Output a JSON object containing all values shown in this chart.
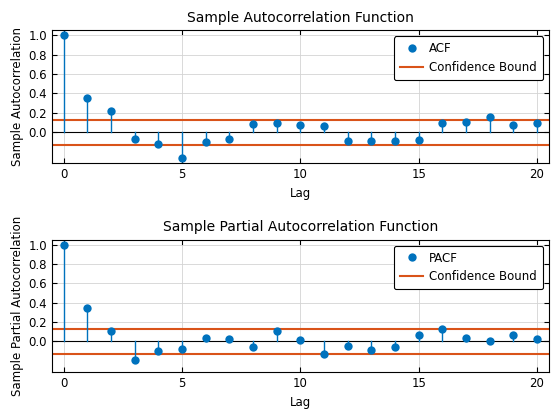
{
  "acf_lags": [
    0,
    1,
    2,
    3,
    4,
    5,
    6,
    7,
    8,
    9,
    10,
    11,
    12,
    13,
    14,
    15,
    16,
    17,
    18,
    19,
    20
  ],
  "acf_values": [
    1.0,
    0.35,
    0.22,
    -0.07,
    -0.12,
    -0.27,
    -0.1,
    -0.07,
    0.08,
    0.09,
    0.07,
    0.06,
    -0.09,
    -0.09,
    -0.09,
    -0.08,
    0.09,
    0.1,
    0.16,
    0.07,
    0.09
  ],
  "pacf_lags": [
    0,
    1,
    2,
    3,
    4,
    5,
    6,
    7,
    8,
    9,
    10,
    11,
    12,
    13,
    14,
    15,
    16,
    17,
    18,
    19,
    20
  ],
  "pacf_values": [
    1.0,
    0.35,
    0.11,
    -0.19,
    -0.1,
    -0.08,
    0.04,
    0.03,
    -0.06,
    0.11,
    0.02,
    -0.13,
    -0.05,
    -0.09,
    -0.06,
    0.07,
    0.13,
    0.04,
    0.0,
    0.07,
    0.03
  ],
  "conf_bound": 0.13,
  "acf_title": "Sample Autocorrelation Function",
  "pacf_title": "Sample Partial Autocorrelation Function",
  "xlabel": "Lag",
  "acf_ylabel": "Sample Autocorrelation",
  "pacf_ylabel": "Sample Partial Autocorrelation",
  "acf_legend": "ACF",
  "pacf_legend": "PACF",
  "conf_legend": "Confidence Bound",
  "stem_color": "#0072BD",
  "conf_color": "#D95319",
  "ylim": [
    -0.32,
    1.05
  ],
  "xlim": [
    -0.5,
    20.5
  ],
  "yticks": [
    0.0,
    0.2,
    0.4,
    0.6,
    0.8,
    1.0
  ],
  "xticks": [
    0,
    5,
    10,
    15,
    20
  ],
  "title_fontsize": 10,
  "label_fontsize": 8.5,
  "tick_fontsize": 8.5,
  "bg_color": "#ffffff",
  "grid_color": "#d3d3d3"
}
